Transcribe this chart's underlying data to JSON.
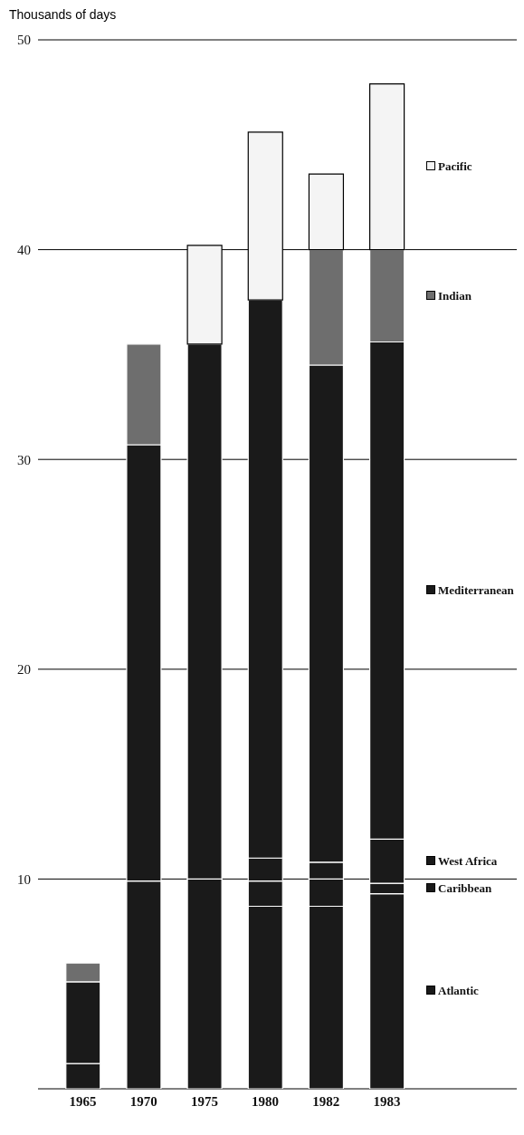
{
  "chart_data": {
    "type": "bar",
    "ylabel": "Thousands of days",
    "stacked": true,
    "categories": [
      "1965",
      "1970",
      "1975",
      "1980",
      "1982",
      "1983"
    ],
    "series": [
      {
        "name": "Atlantic",
        "color": "#1a1a1a",
        "values": [
          1.2,
          9.9,
          10,
          8.7,
          8.7,
          9.3
        ]
      },
      {
        "name": "Caribbean",
        "color": "#1a1a1a",
        "values": [
          0,
          0,
          0,
          1.2,
          1.3,
          0.5
        ]
      },
      {
        "name": "West Africa",
        "color": "#1a1a1a",
        "values": [
          0,
          0,
          0,
          1.1,
          0.8,
          2.1
        ]
      },
      {
        "name": "Mediterranean",
        "color": "#1a1a1a",
        "values": [
          3.9,
          20.8,
          25.5,
          26.6,
          23.7,
          23.7
        ]
      },
      {
        "name": "Indian",
        "color": "#6e6e6e",
        "values": [
          0.9,
          4.8,
          0,
          0,
          5.5,
          4.4
        ]
      },
      {
        "name": "Pacific",
        "color": "#f4f4f4",
        "values": [
          0,
          0,
          4.7,
          8.0,
          3.6,
          7.9
        ]
      }
    ],
    "ylim": [
      0,
      50
    ],
    "yticks": [
      10,
      20,
      30,
      40,
      50
    ],
    "grid": "y",
    "legend": "right"
  }
}
